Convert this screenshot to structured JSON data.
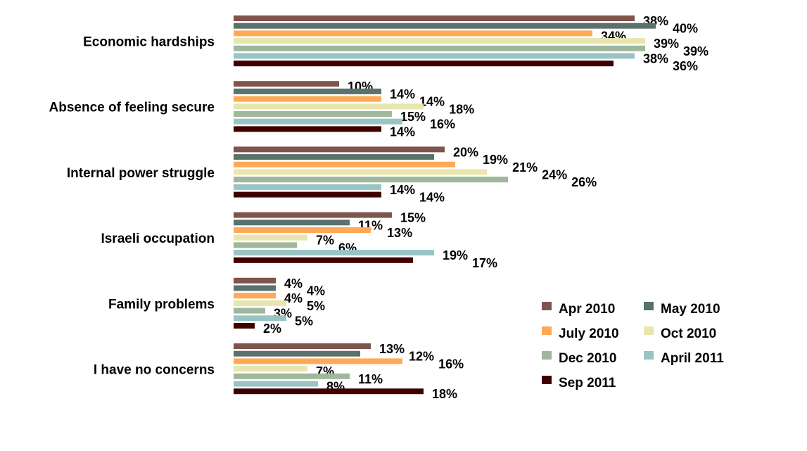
{
  "chart_data": {
    "type": "bar",
    "orientation": "horizontal",
    "title": "",
    "xlabel": "",
    "ylabel": "",
    "xlim": [
      0,
      45
    ],
    "grid": false,
    "legend_position": "bottom-right",
    "categories": [
      "Economic hardships",
      "Absence of feeling secure",
      "Internal power struggle",
      "Israeli occupation",
      "Family problems",
      "I have no concerns"
    ],
    "value_suffix": "%",
    "series": [
      {
        "name": "Apr 2010",
        "color": "#7F544C",
        "values": [
          38,
          10,
          20,
          15,
          4,
          13
        ]
      },
      {
        "name": "May 2010",
        "color": "#5A716C",
        "values": [
          40,
          14,
          19,
          11,
          4,
          12
        ]
      },
      {
        "name": "July 2010",
        "color": "#FFA957",
        "values": [
          34,
          14,
          21,
          13,
          4,
          16
        ]
      },
      {
        "name": "Oct 2010",
        "color": "#E8E6AE",
        "values": [
          39,
          18,
          24,
          7,
          5,
          7
        ]
      },
      {
        "name": "Dec 2010",
        "color": "#9FB89B",
        "values": [
          39,
          15,
          26,
          6,
          3,
          11
        ]
      },
      {
        "name": "April 2011",
        "color": "#9AC4C4",
        "values": [
          38,
          16,
          14,
          19,
          5,
          8
        ]
      },
      {
        "name": "Sep 2011",
        "color": "#3F0000",
        "values": [
          36,
          14,
          14,
          17,
          2,
          18
        ]
      }
    ]
  }
}
